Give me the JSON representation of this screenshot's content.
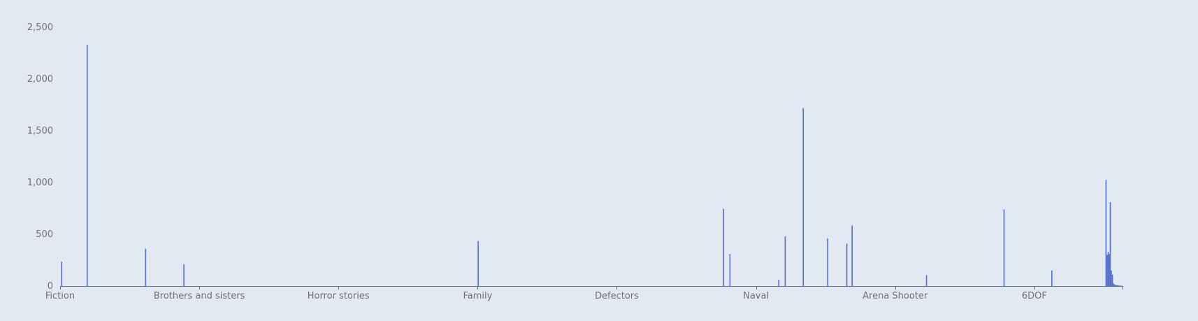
{
  "chart_data": {
    "type": "bar",
    "title": "",
    "xlabel": "",
    "ylabel": "",
    "ylim": [
      0,
      2500
    ],
    "yticks": [
      0,
      500,
      1000,
      1500,
      2000,
      2500
    ],
    "ytick_labels": [
      "0",
      "500",
      "1,000",
      "1,500",
      "2,000",
      "2,500"
    ],
    "grid": false,
    "legend": "none",
    "num_categories": 1000,
    "xtick_labels": [
      {
        "label": "Fiction",
        "index": 0
      },
      {
        "label": "Brothers and sisters",
        "index": 131
      },
      {
        "label": "Horror stories",
        "index": 262
      },
      {
        "label": "Family",
        "index": 393
      },
      {
        "label": "Defectors",
        "index": 524
      },
      {
        "label": "Naval",
        "index": 655
      },
      {
        "label": "Arena Shooter",
        "index": 786
      },
      {
        "label": "6DOF",
        "index": 917
      }
    ],
    "bars": [
      {
        "index": 1,
        "value": 235
      },
      {
        "index": 25,
        "value": 2330
      },
      {
        "index": 80,
        "value": 360
      },
      {
        "index": 116,
        "value": 210
      },
      {
        "index": 393,
        "value": 435
      },
      {
        "index": 624,
        "value": 745
      },
      {
        "index": 630,
        "value": 310
      },
      {
        "index": 676,
        "value": 60
      },
      {
        "index": 682,
        "value": 480
      },
      {
        "index": 699,
        "value": 1720
      },
      {
        "index": 722,
        "value": 460
      },
      {
        "index": 740,
        "value": 410
      },
      {
        "index": 745,
        "value": 585
      },
      {
        "index": 815,
        "value": 105
      },
      {
        "index": 888,
        "value": 740
      },
      {
        "index": 933,
        "value": 150
      },
      {
        "index": 984,
        "value": 1025
      },
      {
        "index": 985,
        "value": 300
      },
      {
        "index": 986,
        "value": 330
      },
      {
        "index": 987,
        "value": 310
      },
      {
        "index": 988,
        "value": 810
      },
      {
        "index": 989,
        "value": 150
      },
      {
        "index": 990,
        "value": 110
      },
      {
        "index": 991,
        "value": 25
      },
      {
        "index": 992,
        "value": 15
      },
      {
        "index": 993,
        "value": 10
      },
      {
        "index": 994,
        "value": 8
      },
      {
        "index": 995,
        "value": 6
      },
      {
        "index": 996,
        "value": 5
      },
      {
        "index": 997,
        "value": 4
      },
      {
        "index": 998,
        "value": 3
      },
      {
        "index": 999,
        "value": 2
      }
    ],
    "colors": {
      "bar": "#5470c6",
      "axis": "#6e7079",
      "label": "#6e7079",
      "background": "#e3e9f2"
    }
  }
}
